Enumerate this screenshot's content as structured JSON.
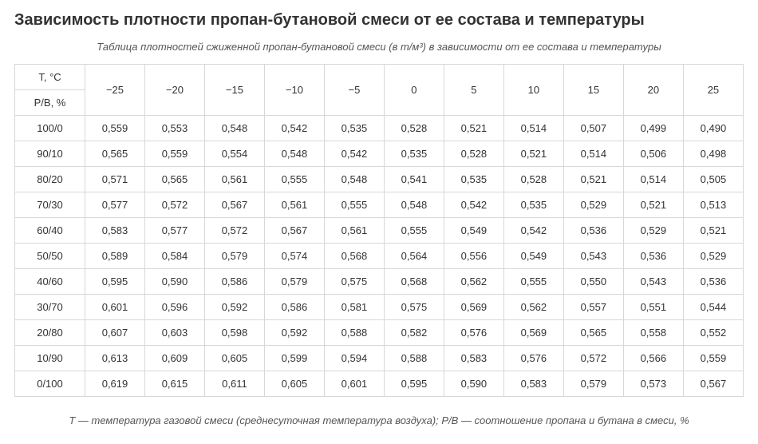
{
  "title": "Зависимость плотности пропан-бутановой смеси от ее состава и температуры",
  "subtitle": "Таблица плотностей сжиженной пропан-бутановой смеси (в т/м³) в зависимости от ее состава и температуры",
  "footer": "T — температура газовой смеси (среднесуточная температура воздуха); P/B — соотношение пропана и бутана в смеси, %",
  "table": {
    "type": "table",
    "corner_labels": [
      "T, °C",
      "P/B, %"
    ],
    "temperatures": [
      "−25",
      "−20",
      "−15",
      "−10",
      "−5",
      "0",
      "5",
      "10",
      "15",
      "20",
      "25"
    ],
    "rows": [
      {
        "ratio": "100/0",
        "values": [
          "0,559",
          "0,553",
          "0,548",
          "0,542",
          "0,535",
          "0,528",
          "0,521",
          "0,514",
          "0,507",
          "0,499",
          "0,490"
        ]
      },
      {
        "ratio": "90/10",
        "values": [
          "0,565",
          "0,559",
          "0,554",
          "0,548",
          "0,542",
          "0,535",
          "0,528",
          "0,521",
          "0,514",
          "0,506",
          "0,498"
        ]
      },
      {
        "ratio": "80/20",
        "values": [
          "0,571",
          "0,565",
          "0,561",
          "0,555",
          "0,548",
          "0,541",
          "0,535",
          "0,528",
          "0,521",
          "0,514",
          "0,505"
        ]
      },
      {
        "ratio": "70/30",
        "values": [
          "0,577",
          "0,572",
          "0,567",
          "0,561",
          "0,555",
          "0,548",
          "0,542",
          "0,535",
          "0,529",
          "0,521",
          "0,513"
        ]
      },
      {
        "ratio": "60/40",
        "values": [
          "0,583",
          "0,577",
          "0,572",
          "0,567",
          "0,561",
          "0,555",
          "0,549",
          "0,542",
          "0,536",
          "0,529",
          "0,521"
        ]
      },
      {
        "ratio": "50/50",
        "values": [
          "0,589",
          "0,584",
          "0,579",
          "0,574",
          "0,568",
          "0,564",
          "0,556",
          "0,549",
          "0,543",
          "0,536",
          "0,529"
        ]
      },
      {
        "ratio": "40/60",
        "values": [
          "0,595",
          "0,590",
          "0,586",
          "0,579",
          "0,575",
          "0,568",
          "0,562",
          "0,555",
          "0,550",
          "0,543",
          "0,536"
        ]
      },
      {
        "ratio": "30/70",
        "values": [
          "0,601",
          "0,596",
          "0,592",
          "0,586",
          "0,581",
          "0,575",
          "0,569",
          "0,562",
          "0,557",
          "0,551",
          "0,544"
        ]
      },
      {
        "ratio": "20/80",
        "values": [
          "0,607",
          "0,603",
          "0,598",
          "0,592",
          "0,588",
          "0,582",
          "0,576",
          "0,569",
          "0,565",
          "0,558",
          "0,552"
        ]
      },
      {
        "ratio": "10/90",
        "values": [
          "0,613",
          "0,609",
          "0,605",
          "0,599",
          "0,594",
          "0,588",
          "0,583",
          "0,576",
          "0,572",
          "0,566",
          "0,559"
        ]
      },
      {
        "ratio": "0/100",
        "values": [
          "0,619",
          "0,615",
          "0,611",
          "0,605",
          "0,601",
          "0,595",
          "0,590",
          "0,583",
          "0,579",
          "0,573",
          "0,567"
        ]
      }
    ],
    "border_color": "#d8d8d8",
    "text_color": "#333333",
    "font_size_pt": 10,
    "background_color": "#ffffff"
  }
}
